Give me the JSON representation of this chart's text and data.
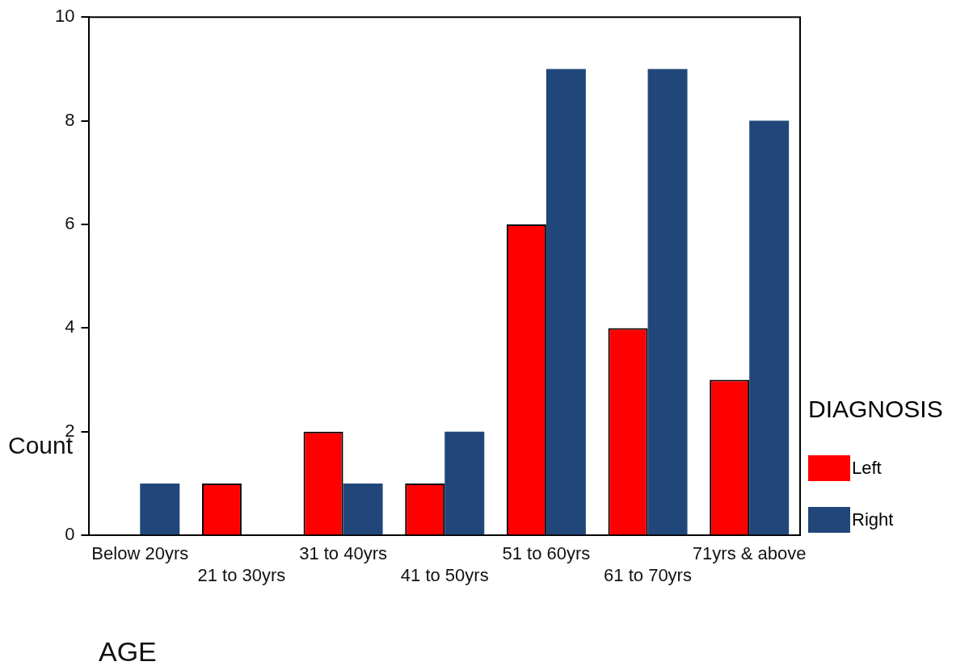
{
  "chart_data": {
    "type": "bar",
    "xlabel": "AGE",
    "ylabel": "Count",
    "legend_title": "DIAGNOSIS",
    "legend": "right",
    "categories": [
      "Below 20yrs",
      "21 to 30yrs",
      "31 to 40yrs",
      "41 to 50yrs",
      "51 to 60yrs",
      "61 to 70yrs",
      "71yrs & above"
    ],
    "series": [
      {
        "name": "Left",
        "color": "#ff0000",
        "values": [
          0,
          1,
          2,
          1,
          6,
          4,
          3
        ]
      },
      {
        "name": "Right",
        "color": "#21477a",
        "values": [
          1,
          0,
          1,
          2,
          9,
          9,
          8
        ]
      }
    ],
    "ylim": [
      0,
      10
    ],
    "yticks": [
      0,
      2,
      4,
      6,
      8,
      10
    ],
    "grid": false
  }
}
